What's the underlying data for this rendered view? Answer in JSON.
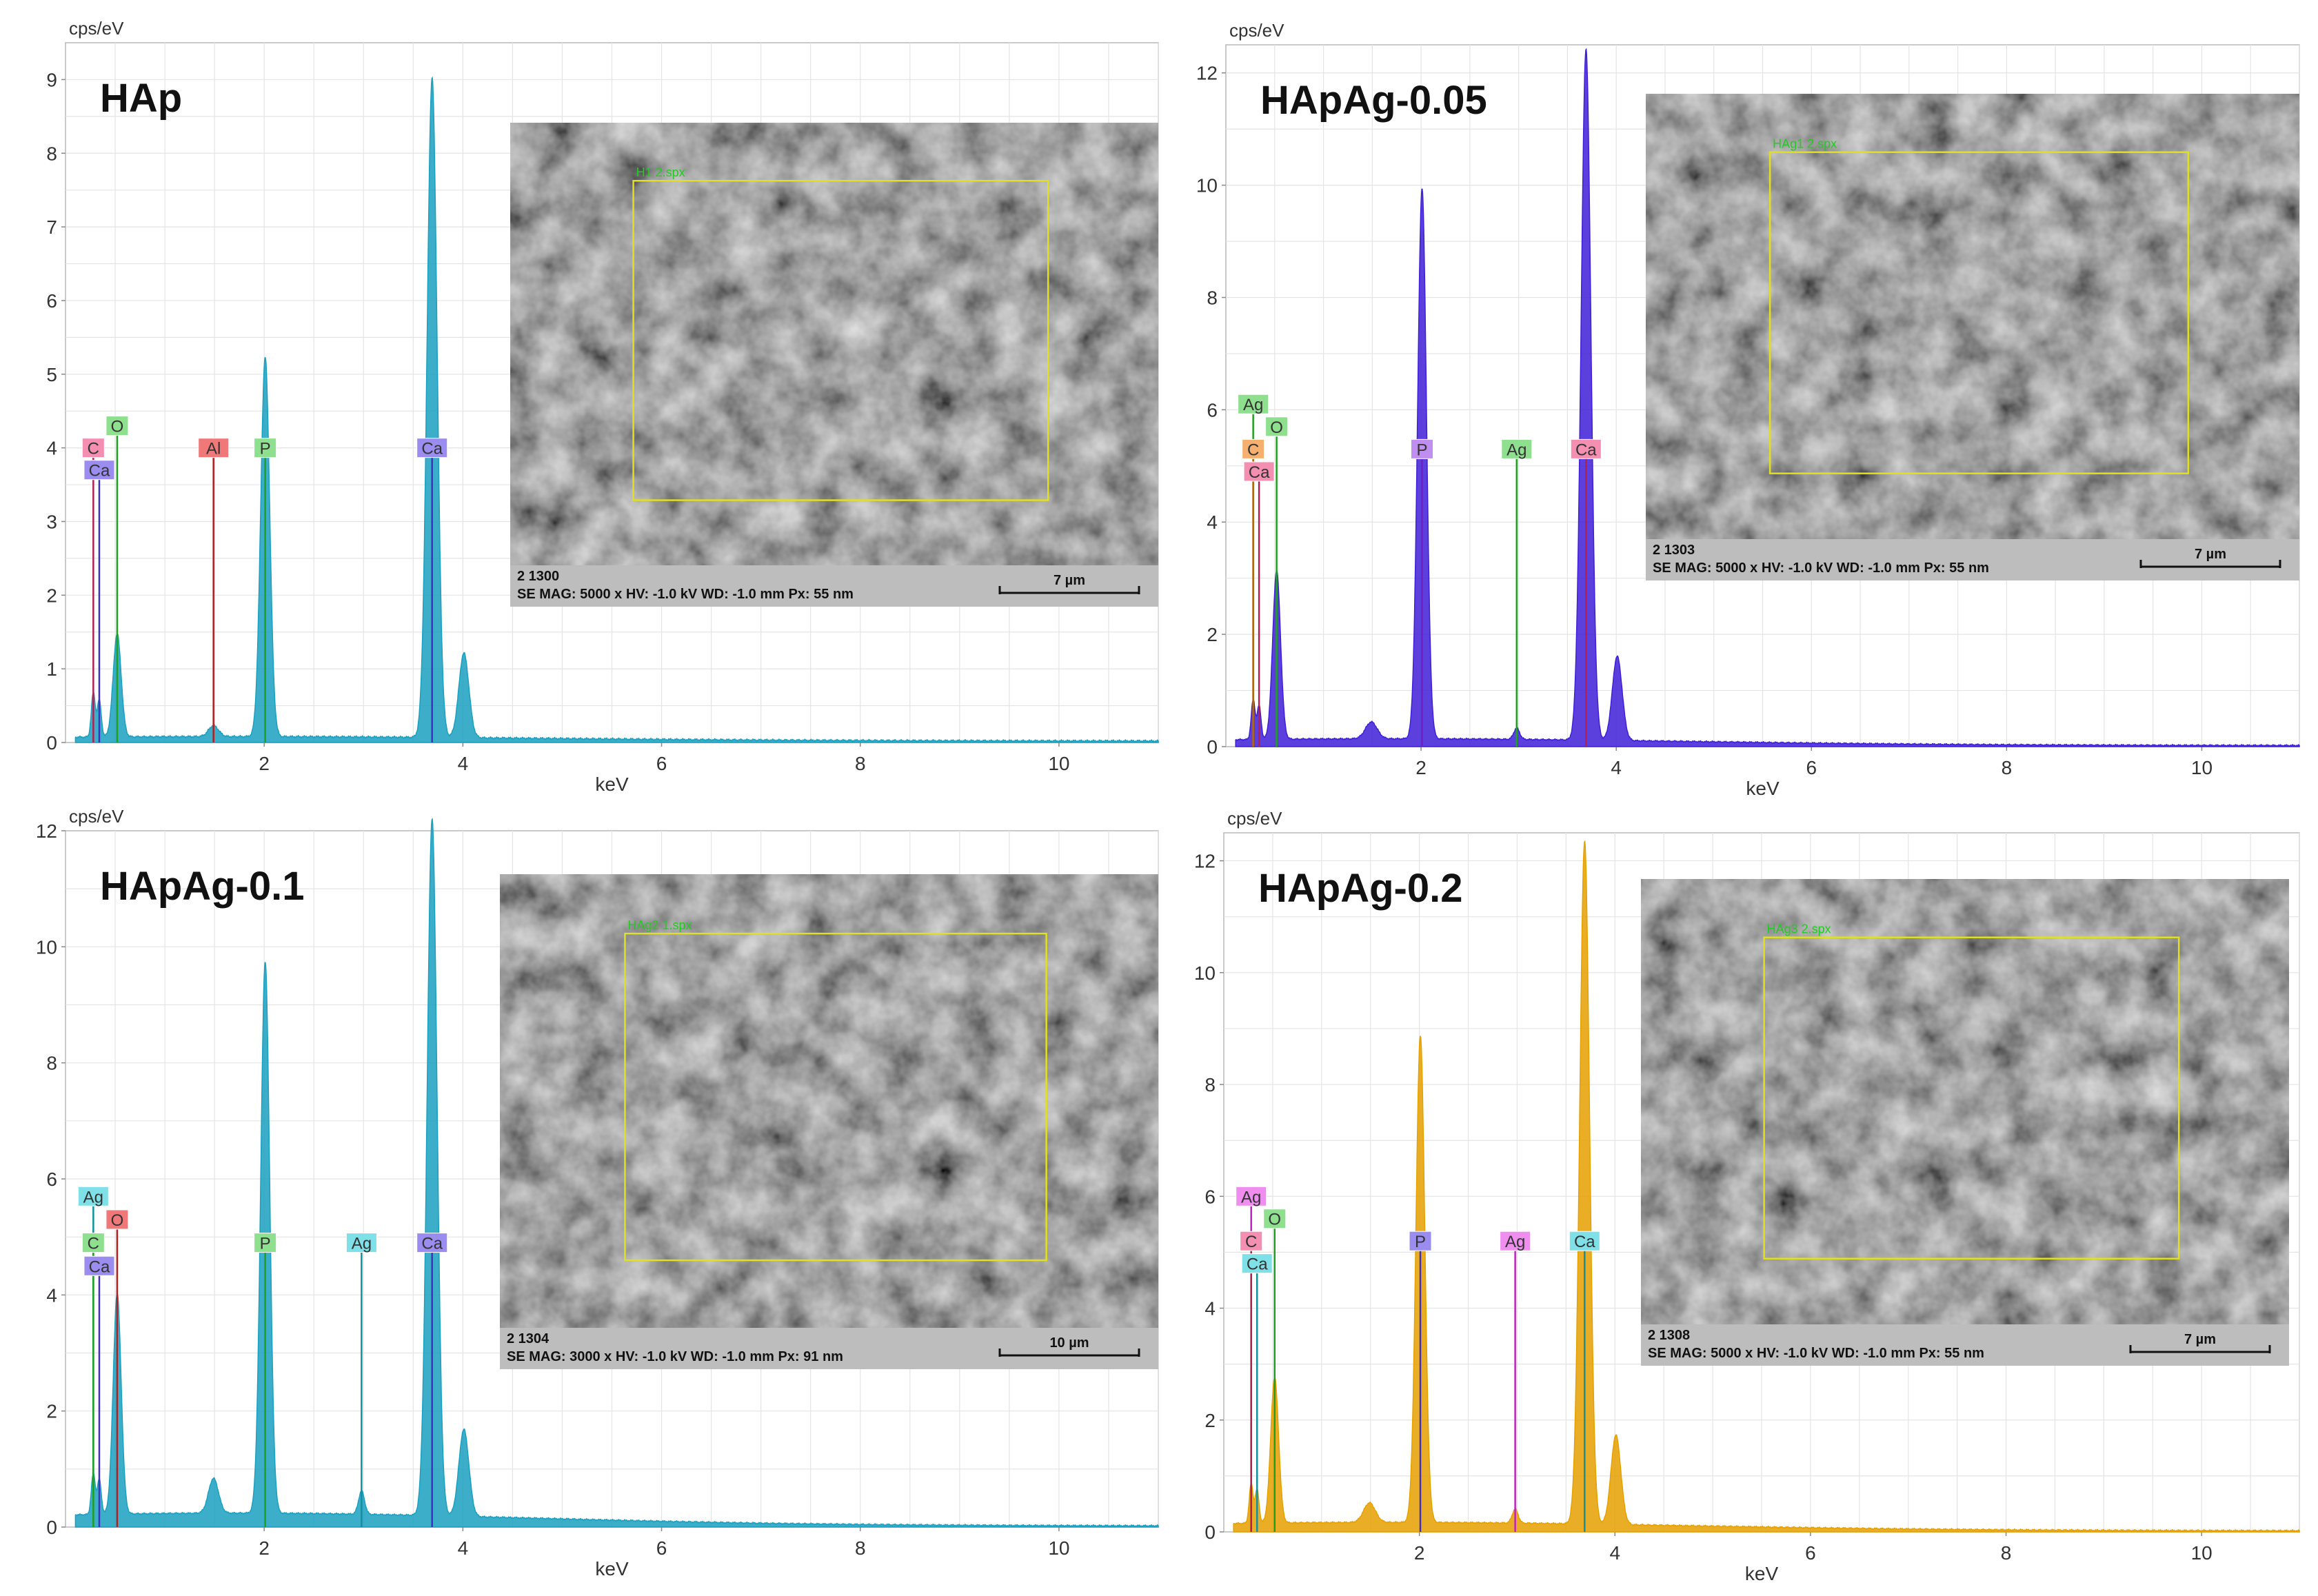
{
  "chart_data": [
    {
      "type": "line",
      "title": "HAp",
      "ylabel": "cps/eV",
      "xlabel": "keV",
      "xlim": [
        0,
        11
      ],
      "ylim": [
        0,
        9.5
      ],
      "xticks": [
        2,
        4,
        6,
        8,
        10
      ],
      "yticks": [
        0,
        1,
        2,
        3,
        4,
        5,
        6,
        7,
        8,
        9
      ],
      "grid": true,
      "color": "#1aa0c0",
      "peaks": [
        {
          "x": 0.28,
          "y": 0.6,
          "w": 0.02
        },
        {
          "x": 0.34,
          "y": 0.5,
          "w": 0.02
        },
        {
          "x": 0.52,
          "y": 1.4,
          "w": 0.04
        },
        {
          "x": 1.49,
          "y": 0.15,
          "w": 0.05
        },
        {
          "x": 2.01,
          "y": 5.15,
          "w": 0.045
        },
        {
          "x": 3.69,
          "y": 8.95,
          "w": 0.05
        },
        {
          "x": 4.01,
          "y": 1.15,
          "w": 0.05
        }
      ],
      "baseline": 0.06,
      "markers": [
        {
          "label": "C",
          "x": 0.28,
          "y": 4.0,
          "bg": "#f48fb1",
          "line": "#b02050"
        },
        {
          "label": "O",
          "x": 0.52,
          "y": 4.3,
          "bg": "#8ee08e",
          "line": "#20a020"
        },
        {
          "label": "Ca",
          "x": 0.34,
          "y": 3.7,
          "bg": "#9b8cf0",
          "line": "#4030c0"
        },
        {
          "label": "Al",
          "x": 1.49,
          "y": 4.0,
          "bg": "#f07878",
          "line": "#b02020"
        },
        {
          "label": "P",
          "x": 2.01,
          "y": 4.0,
          "bg": "#8ee08e",
          "line": "#20a020"
        },
        {
          "label": "Ca",
          "x": 3.69,
          "y": 4.0,
          "bg": "#9b8cf0",
          "line": "#4030c0"
        }
      ],
      "sem": {
        "id_text": "2 1300",
        "info_text": "SE  MAG: 5000 x  HV: -1.0 kV  WD: -1.0 mm  Px: 55 nm",
        "scale_text": "7 µm",
        "roi_text": "H1 2.spx"
      }
    },
    {
      "type": "line",
      "title": "HApAg-0.05",
      "ylabel": "cps/eV",
      "xlabel": "keV",
      "xlim": [
        0,
        11
      ],
      "ylim": [
        0,
        12.5
      ],
      "xticks": [
        2,
        4,
        6,
        8,
        10
      ],
      "yticks": [
        0,
        2,
        4,
        6,
        8,
        10,
        12
      ],
      "grid": true,
      "color": "#3f1fd8",
      "peaks": [
        {
          "x": 0.28,
          "y": 0.7,
          "w": 0.02
        },
        {
          "x": 0.34,
          "y": 0.6,
          "w": 0.02
        },
        {
          "x": 0.52,
          "y": 3.0,
          "w": 0.04
        },
        {
          "x": 1.49,
          "y": 0.3,
          "w": 0.06
        },
        {
          "x": 2.01,
          "y": 9.8,
          "w": 0.045
        },
        {
          "x": 2.98,
          "y": 0.2,
          "w": 0.03
        },
        {
          "x": 3.69,
          "y": 12.3,
          "w": 0.05
        },
        {
          "x": 4.01,
          "y": 1.5,
          "w": 0.05
        }
      ],
      "baseline": 0.12,
      "markers": [
        {
          "label": "Ag",
          "x": 0.28,
          "y": 6.1,
          "bg": "#8ee08e",
          "line": "#20a020"
        },
        {
          "label": "O",
          "x": 0.52,
          "y": 5.7,
          "bg": "#8ee08e",
          "line": "#20a020"
        },
        {
          "label": "C",
          "x": 0.28,
          "y": 5.3,
          "bg": "#f5b070",
          "line": "#c06010"
        },
        {
          "label": "Ca",
          "x": 0.34,
          "y": 4.9,
          "bg": "#f48fb1",
          "line": "#b02050"
        },
        {
          "label": "P",
          "x": 2.01,
          "y": 5.3,
          "bg": "#c08ef0",
          "line": "#7020c0"
        },
        {
          "label": "Ag",
          "x": 2.98,
          "y": 5.3,
          "bg": "#8ee08e",
          "line": "#20a020"
        },
        {
          "label": "Ca",
          "x": 3.69,
          "y": 5.3,
          "bg": "#f48fb1",
          "line": "#b02050"
        }
      ],
      "sem": {
        "id_text": "2 1303",
        "info_text": "SE  MAG: 5000 x  HV: -1.0 kV  WD: -1.0 mm  Px: 55 nm",
        "scale_text": "7 µm",
        "roi_text": "HAg1 2.spx"
      }
    },
    {
      "type": "line",
      "title": "HApAg-0.1",
      "ylabel": "cps/eV",
      "xlabel": "keV",
      "xlim": [
        0,
        11
      ],
      "ylim": [
        0,
        12
      ],
      "xticks": [
        2,
        4,
        6,
        8,
        10
      ],
      "yticks": [
        0,
        2,
        4,
        6,
        8,
        10,
        12
      ],
      "grid": true,
      "color": "#1aa0c0",
      "peaks": [
        {
          "x": 0.28,
          "y": 0.7,
          "w": 0.02
        },
        {
          "x": 0.34,
          "y": 0.6,
          "w": 0.02
        },
        {
          "x": 0.52,
          "y": 3.8,
          "w": 0.04
        },
        {
          "x": 1.49,
          "y": 0.6,
          "w": 0.05
        },
        {
          "x": 2.01,
          "y": 9.5,
          "w": 0.045
        },
        {
          "x": 2.98,
          "y": 0.4,
          "w": 0.03
        },
        {
          "x": 3.69,
          "y": 12.0,
          "w": 0.05
        },
        {
          "x": 4.01,
          "y": 1.5,
          "w": 0.05
        }
      ],
      "baseline": 0.22,
      "markers": [
        {
          "label": "Ag",
          "x": 0.28,
          "y": 5.7,
          "bg": "#7fe0e8",
          "line": "#1090a0"
        },
        {
          "label": "O",
          "x": 0.52,
          "y": 5.3,
          "bg": "#f07878",
          "line": "#b02020"
        },
        {
          "label": "C",
          "x": 0.28,
          "y": 4.9,
          "bg": "#8ee08e",
          "line": "#20a020"
        },
        {
          "label": "Ca",
          "x": 0.34,
          "y": 4.5,
          "bg": "#9b8cf0",
          "line": "#4030c0"
        },
        {
          "label": "P",
          "x": 2.01,
          "y": 4.9,
          "bg": "#8ee08e",
          "line": "#20a020"
        },
        {
          "label": "Ag",
          "x": 2.98,
          "y": 4.9,
          "bg": "#7fe0e8",
          "line": "#1090a0"
        },
        {
          "label": "Ca",
          "x": 3.69,
          "y": 4.9,
          "bg": "#9b8cf0",
          "line": "#4030c0"
        }
      ],
      "sem": {
        "id_text": "2 1304",
        "info_text": "SE  MAG: 3000 x  HV: -1.0 kV  WD: -1.0 mm  Px: 91 nm",
        "scale_text": "10 µm",
        "roi_text": "HAg2 1.spx"
      }
    },
    {
      "type": "line",
      "title": "HApAg-0.2",
      "ylabel": "cps/eV",
      "xlabel": "keV",
      "xlim": [
        0,
        11
      ],
      "ylim": [
        0,
        12.5
      ],
      "xticks": [
        2,
        4,
        6,
        8,
        10
      ],
      "yticks": [
        0,
        2,
        4,
        6,
        8,
        10,
        12
      ],
      "grid": true,
      "color": "#e6a000",
      "peaks": [
        {
          "x": 0.28,
          "y": 0.7,
          "w": 0.02
        },
        {
          "x": 0.34,
          "y": 0.6,
          "w": 0.02
        },
        {
          "x": 0.52,
          "y": 2.6,
          "w": 0.04
        },
        {
          "x": 1.49,
          "y": 0.35,
          "w": 0.06
        },
        {
          "x": 2.01,
          "y": 8.7,
          "w": 0.045
        },
        {
          "x": 2.98,
          "y": 0.25,
          "w": 0.03
        },
        {
          "x": 3.69,
          "y": 12.2,
          "w": 0.05
        },
        {
          "x": 4.01,
          "y": 1.6,
          "w": 0.05
        }
      ],
      "baseline": 0.15,
      "markers": [
        {
          "label": "Ag",
          "x": 0.28,
          "y": 6.0,
          "bg": "#f08ef0",
          "line": "#c020c0"
        },
        {
          "label": "O",
          "x": 0.52,
          "y": 5.6,
          "bg": "#8ee08e",
          "line": "#20a020"
        },
        {
          "label": "C",
          "x": 0.28,
          "y": 5.2,
          "bg": "#f48fb1",
          "line": "#b02050"
        },
        {
          "label": "Ca",
          "x": 0.34,
          "y": 4.8,
          "bg": "#7fe0e8",
          "line": "#1090a0"
        },
        {
          "label": "P",
          "x": 2.01,
          "y": 5.2,
          "bg": "#9b8cf0",
          "line": "#4030c0"
        },
        {
          "label": "Ag",
          "x": 2.98,
          "y": 5.2,
          "bg": "#f08ef0",
          "line": "#c020c0"
        },
        {
          "label": "Ca",
          "x": 3.69,
          "y": 5.2,
          "bg": "#7fe0e8",
          "line": "#1090a0"
        }
      ],
      "sem": {
        "id_text": "2 1308",
        "info_text": "SE  MAG: 5000 x  HV: -1.0 kV  WD: -1.0 mm  Px: 55 nm",
        "scale_text": "7 µm",
        "roi_text": "HAg3 2.spx"
      }
    }
  ]
}
